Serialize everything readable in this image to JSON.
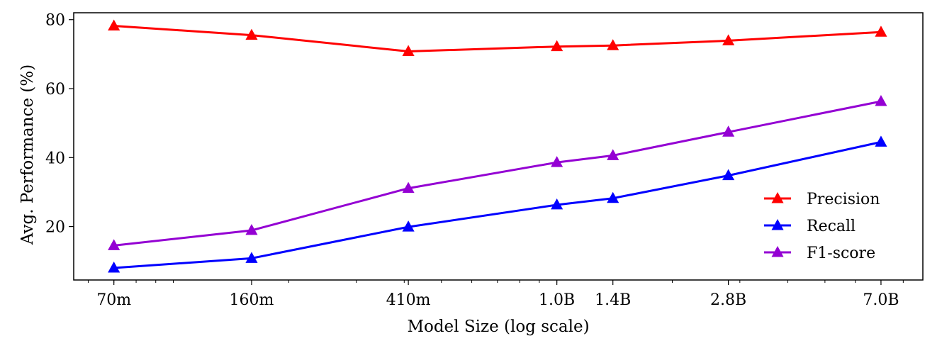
{
  "chart_data": {
    "type": "line",
    "xlabel": "Model Size (log scale)",
    "ylabel": "Avg. Performance (%)",
    "x_scale": "log",
    "x": [
      70000000,
      160000000,
      410000000,
      1000000000,
      1400000000,
      2800000000,
      7000000000
    ],
    "x_tick_labels": [
      "70m",
      "160m",
      "410m",
      "1.0B",
      "1.4B",
      "2.8B",
      "7.0B"
    ],
    "y_ticks": [
      20,
      40,
      60,
      80
    ],
    "ylim": [
      4.5,
      82
    ],
    "xlim": [
      55000000,
      9000000000
    ],
    "grid": false,
    "legend_position": "lower-right",
    "series": [
      {
        "name": "Precision",
        "color": "#ff0000",
        "marker": "triangle",
        "values": [
          78.2,
          75.5,
          70.8,
          72.2,
          72.5,
          73.9,
          76.4
        ]
      },
      {
        "name": "Recall",
        "color": "#0000ff",
        "marker": "triangle",
        "values": [
          8.0,
          10.8,
          19.9,
          26.3,
          28.2,
          34.8,
          44.5
        ]
      },
      {
        "name": "F1-score",
        "color": "#9400d3",
        "marker": "triangle",
        "values": [
          14.5,
          18.9,
          31.1,
          38.6,
          40.6,
          47.4,
          56.3
        ]
      }
    ]
  }
}
